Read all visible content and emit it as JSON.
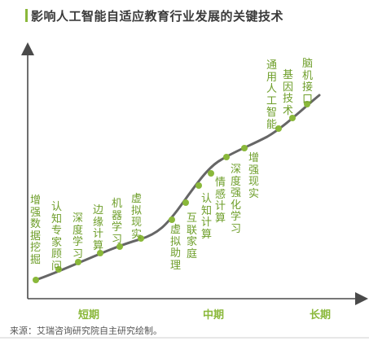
{
  "title": "影响人工智能自适应教育行业发展的关键技术",
  "phases": [
    "短期",
    "中期",
    "长期"
  ],
  "source": "来源：艾瑞咨询研究院自主研究绘制。",
  "colors": {
    "curve": "#666666",
    "marker": "#8ab83a",
    "label": "#6e9e2a",
    "axis": "#4a4a4a"
  },
  "technologies": [
    "增强数据挖掘",
    "认知专家顾问",
    "深度学习",
    "边缘计算",
    "机器学习",
    "虚拟现实",
    "虚拟助理",
    "互联家庭",
    "认知计算",
    "情感计算",
    "深度强化学习",
    "增强现实",
    "通用人工智能",
    "基因技术",
    "脑机接口"
  ]
}
